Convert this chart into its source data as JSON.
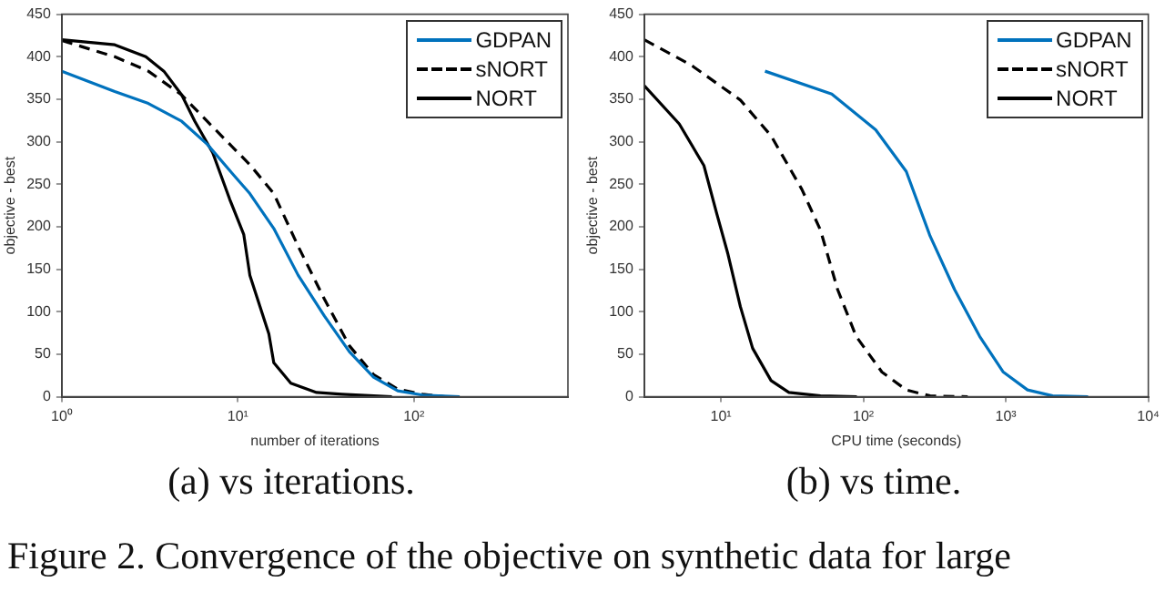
{
  "chart_data": [
    {
      "type": "line",
      "xlabel": "number of iterations",
      "ylabel": "objective - best",
      "log": "x",
      "xlim": [
        1,
        750
      ],
      "ylim": [
        0,
        450
      ],
      "xticks": [
        {
          "value": 1,
          "label": "10⁰"
        },
        {
          "value": 10,
          "label": "10¹"
        },
        {
          "value": 100,
          "label": "10²"
        }
      ],
      "yticks": [
        0,
        50,
        100,
        150,
        200,
        250,
        300,
        350,
        400,
        450
      ],
      "grid": false,
      "legend": "top right",
      "marker": "none",
      "annotations": [
        "(a) vs iterations."
      ],
      "series": [
        {
          "name": "GDPAN",
          "color": "#0072bd",
          "line_style": "solid",
          "x": [
            1,
            2,
            3.1,
            4.8,
            6.7,
            9,
            11.7,
            16,
            22,
            31,
            43,
            59,
            81,
            112,
            182
          ],
          "values": [
            383,
            359,
            345,
            324,
            297,
            266,
            239,
            198,
            143,
            95,
            53,
            23,
            7,
            2,
            0
          ]
        },
        {
          "name": "sNORT",
          "color": "#000000",
          "line_style": "dashed",
          "x": [
            1,
            2,
            3.1,
            4.8,
            6.7,
            9,
            11.7,
            16,
            22,
            31,
            43,
            59,
            81,
            112,
            150
          ],
          "values": [
            419,
            400,
            383,
            355,
            324,
            297,
            273,
            239,
            177,
            115,
            60,
            26,
            9,
            3,
            0
          ]
        },
        {
          "name": "NORT",
          "color": "#000000",
          "line_style": "solid",
          "x": [
            1,
            2,
            3,
            3.8,
            4.8,
            5.7,
            7.2,
            9,
            10.8,
            11.7,
            15,
            16,
            20,
            28,
            39,
            75
          ],
          "values": [
            420,
            414,
            400,
            383,
            355,
            324,
            287,
            232,
            191,
            143,
            74,
            40,
            16,
            5,
            3,
            0
          ]
        }
      ]
    },
    {
      "type": "line",
      "xlabel": "CPU time (seconds)",
      "ylabel": "objective - best",
      "log": "x",
      "xlim": [
        2.9,
        10000
      ],
      "ylim": [
        0,
        450
      ],
      "xticks": [
        {
          "value": 10,
          "label": "10¹"
        },
        {
          "value": 100,
          "label": "10²"
        },
        {
          "value": 1000,
          "label": "10³"
        },
        {
          "value": 10000,
          "label": "10⁴"
        }
      ],
      "yticks": [
        0,
        50,
        100,
        150,
        200,
        250,
        300,
        350,
        400,
        450
      ],
      "grid": false,
      "legend": "top right",
      "marker": "none",
      "annotations": [
        "(b) vs time.",
        "Figure 2. Convergence of the objective on synthetic data for large"
      ],
      "series": [
        {
          "name": "GDPAN",
          "color": "#0072bd",
          "line_style": "solid",
          "x": [
            20.4,
            60,
            122,
            200,
            294,
            437,
            655,
            960,
            1420,
            2130,
            3780
          ],
          "values": [
            383,
            356,
            314,
            265,
            189,
            126,
            71,
            29,
            8,
            1,
            0
          ]
        },
        {
          "name": "sNORT",
          "color": "#000000",
          "line_style": "dashed",
          "x": [
            2.9,
            6.2,
            13.7,
            22.5,
            37,
            50,
            66,
            89,
            135,
            200,
            294,
            540
          ],
          "values": [
            420,
            390,
            349,
            307,
            244,
            196,
            126,
            71,
            29,
            8,
            1,
            0
          ]
        },
        {
          "name": "NORT",
          "color": "#000000",
          "line_style": "solid",
          "x": [
            2.9,
            5.1,
            7.6,
            9.3,
            11.2,
            13.7,
            16.7,
            22.5,
            30,
            50,
            90
          ],
          "values": [
            366,
            321,
            272,
            217,
            168,
            106,
            57,
            19,
            5,
            1,
            0
          ]
        }
      ]
    }
  ]
}
